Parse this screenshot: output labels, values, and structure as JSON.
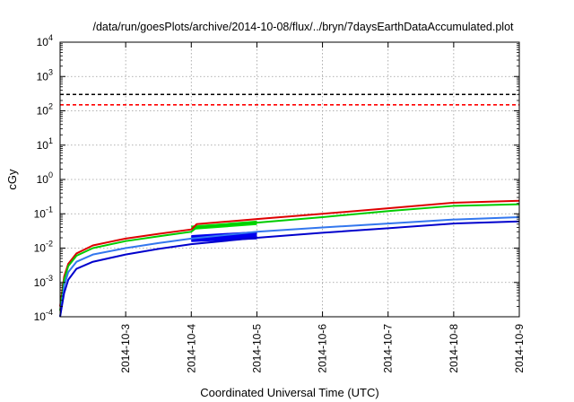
{
  "chart_data": {
    "type": "line",
    "title": "/data/run/goesPlots/archive/2014-10-08/flux/../bryn/7daysEarthDataAccumulated.plot",
    "xlabel": "Coordinated Universal Time (UTC)",
    "ylabel": "cGy",
    "y_scale": "log",
    "ylim": [
      0.0001,
      10000
    ],
    "xlim": [
      "2014-10-02",
      "2014-10-09"
    ],
    "x_ticks": [
      "2014-10-3",
      "2014-10-4",
      "2014-10-5",
      "2014-10-6",
      "2014-10-7",
      "2014-10-8",
      "2014-10-9"
    ],
    "y_ticks": [
      {
        "base": "10",
        "exp": "-4",
        "value": 0.0001
      },
      {
        "base": "10",
        "exp": "-3",
        "value": 0.001
      },
      {
        "base": "10",
        "exp": "-2",
        "value": 0.01
      },
      {
        "base": "10",
        "exp": "-1",
        "value": 0.1
      },
      {
        "base": "10",
        "exp": "0",
        "value": 1
      },
      {
        "base": "10",
        "exp": "1",
        "value": 10
      },
      {
        "base": "10",
        "exp": "2",
        "value": 100
      },
      {
        "base": "10",
        "exp": "3",
        "value": 1000
      },
      {
        "base": "10",
        "exp": "4",
        "value": 10000
      }
    ],
    "grid": true,
    "reference_lines": [
      {
        "color": "#000000",
        "value": 300
      },
      {
        "color": "#ff0000",
        "value": 150
      }
    ],
    "series": [
      {
        "color": "#dd0000",
        "x": [
          "2014-10-02T00:00",
          "2014-10-02T01:30",
          "2014-10-02T03:00",
          "2014-10-02T06:00",
          "2014-10-02T12:00",
          "2014-10-03T00:00",
          "2014-10-03T12:00",
          "2014-10-04T00:00",
          "2014-10-04T02:00",
          "2014-10-05T00:00",
          "2014-10-06T00:00",
          "2014-10-07T00:00",
          "2014-10-08T00:00",
          "2014-10-09T00:00"
        ],
        "y": [
          0.0002,
          0.0015,
          0.0035,
          0.007,
          0.012,
          0.019,
          0.026,
          0.035,
          0.05,
          0.07,
          0.1,
          0.145,
          0.21,
          0.24
        ]
      },
      {
        "color": "#00cc00",
        "x": [
          "2014-10-02T00:00",
          "2014-10-02T01:30",
          "2014-10-02T03:00",
          "2014-10-02T06:00",
          "2014-10-02T12:00",
          "2014-10-03T00:00",
          "2014-10-03T12:00",
          "2014-10-04T00:00",
          "2014-10-04T02:00",
          "2014-10-05T00:00",
          "2014-10-06T00:00",
          "2014-10-07T00:00",
          "2014-10-08T00:00",
          "2014-10-09T00:00"
        ],
        "y": [
          0.00015,
          0.0012,
          0.003,
          0.006,
          0.01,
          0.016,
          0.022,
          0.03,
          0.04,
          0.055,
          0.08,
          0.12,
          0.17,
          0.19
        ]
      },
      {
        "color": "#3377ee",
        "x": [
          "2014-10-02T00:00",
          "2014-10-02T01:30",
          "2014-10-02T03:00",
          "2014-10-02T06:00",
          "2014-10-02T12:00",
          "2014-10-03T00:00",
          "2014-10-03T12:00",
          "2014-10-04T00:00",
          "2014-10-05T00:00",
          "2014-10-06T00:00",
          "2014-10-07T00:00",
          "2014-10-08T00:00",
          "2014-10-09T00:00"
        ],
        "y": [
          0.0001,
          0.0008,
          0.002,
          0.004,
          0.0065,
          0.01,
          0.014,
          0.019,
          0.03,
          0.04,
          0.052,
          0.068,
          0.08
        ]
      },
      {
        "color": "#0000cc",
        "x": [
          "2014-10-02T00:00",
          "2014-10-02T01:30",
          "2014-10-02T03:00",
          "2014-10-02T06:00",
          "2014-10-02T12:00",
          "2014-10-03T00:00",
          "2014-10-03T12:00",
          "2014-10-04T00:00",
          "2014-10-05T00:00",
          "2014-10-06T00:00",
          "2014-10-07T00:00",
          "2014-10-08T00:00",
          "2014-10-09T00:00"
        ],
        "y": [
          0.0001,
          0.0005,
          0.0012,
          0.0025,
          0.004,
          0.0065,
          0.0095,
          0.013,
          0.02,
          0.028,
          0.038,
          0.052,
          0.06
        ]
      }
    ],
    "bands": [
      {
        "color": "#00dd00",
        "x": [
          "2014-10-04T00:00",
          "2014-10-05T00:00"
        ],
        "y_top": [
          0.045,
          0.063
        ],
        "y_bottom": [
          0.034,
          0.047
        ]
      },
      {
        "color": "#0000ee",
        "x": [
          "2014-10-04T00:00",
          "2014-10-05T00:00"
        ],
        "y_top": [
          0.024,
          0.031
        ],
        "y_bottom": [
          0.015,
          0.018
        ]
      }
    ]
  }
}
